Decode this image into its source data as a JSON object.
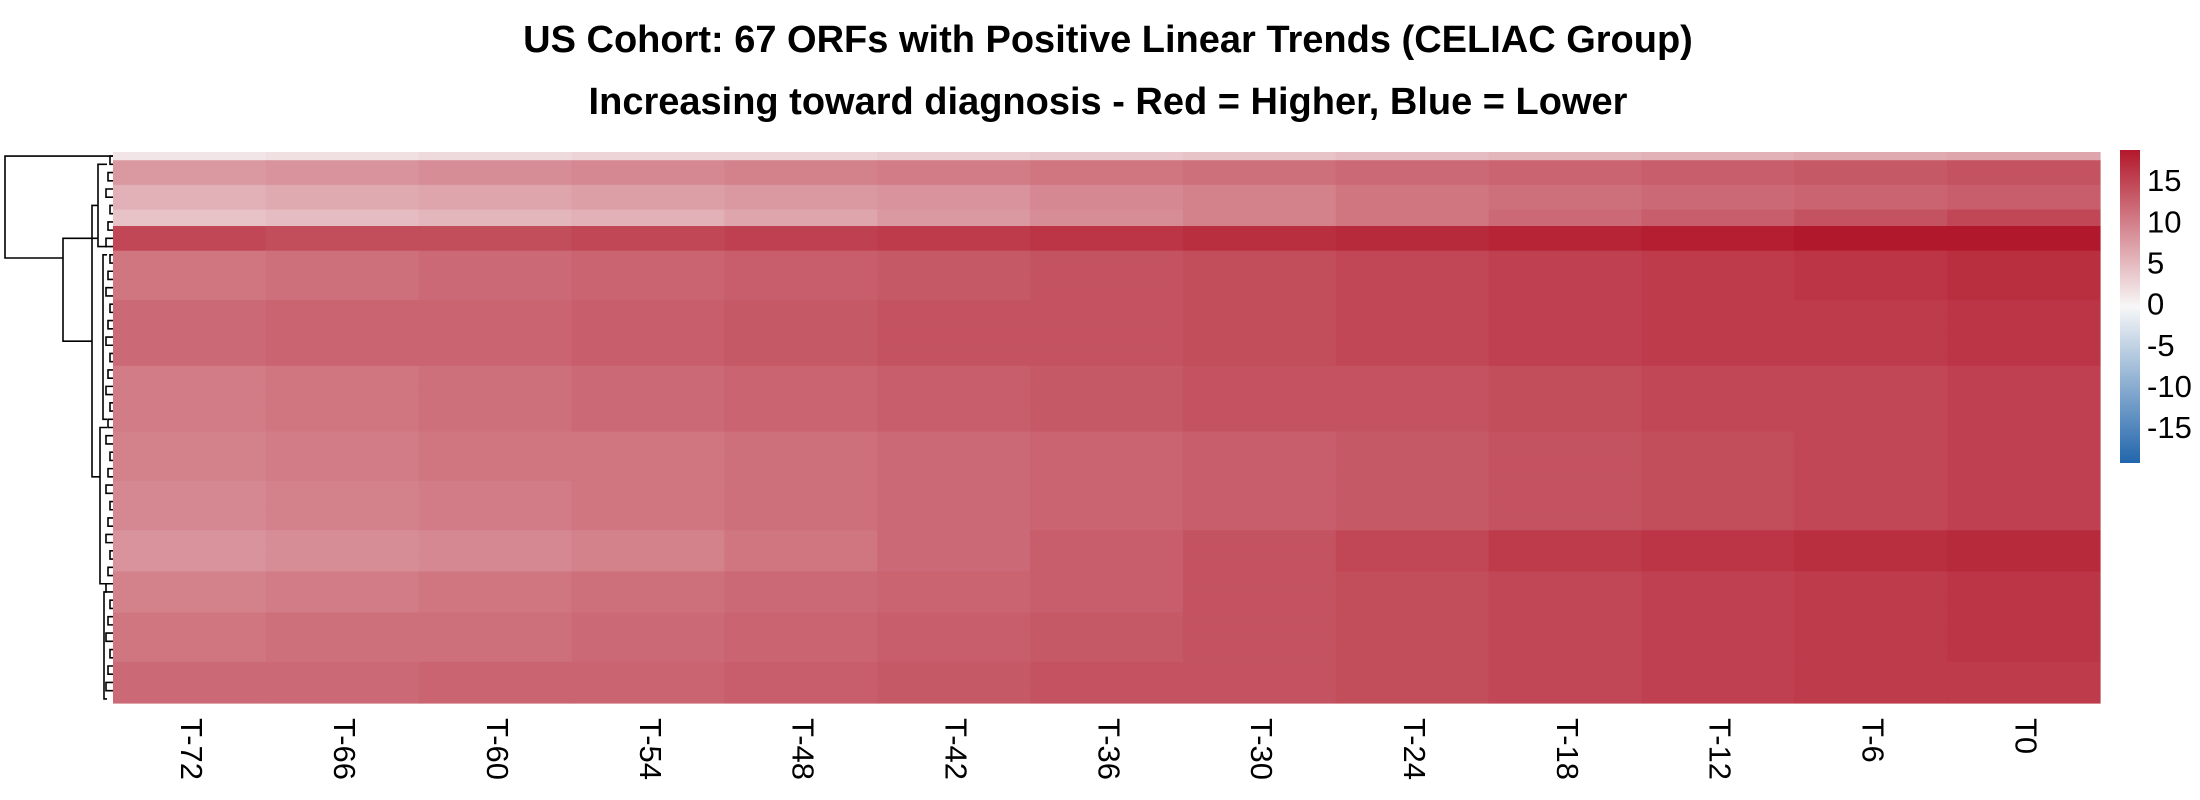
{
  "chart_data": {
    "type": "heatmap",
    "title": "US Cohort: 67 ORFs with Positive Linear Trends (CELIAC Group)",
    "subtitle": "Increasing toward diagnosis - Red = Higher, Blue = Lower",
    "columns": [
      "T-72",
      "T-66",
      "T-60",
      "T-54",
      "T-48",
      "T-42",
      "T-36",
      "T-30",
      "T-24",
      "T-18",
      "T-12",
      "T-6",
      "T0"
    ],
    "row_count": 67,
    "legend": {
      "position": "right",
      "ticks": [
        15,
        10,
        5,
        0,
        -5,
        -10,
        -15
      ],
      "range": [
        -19,
        19
      ],
      "colors": {
        "low": "#2166ac",
        "mid": "#f7f7f7",
        "high": "#b2182b"
      }
    },
    "row_dendrogram": true,
    "values_by_row_group": [
      {
        "rows": 1,
        "values": [
          1.5,
          2,
          2.5,
          3,
          3,
          3.5,
          4,
          4.5,
          5,
          5.5,
          6,
          6.5,
          7
        ]
      },
      {
        "rows": 3,
        "values": [
          8,
          8.5,
          9,
          9.5,
          10,
          10.5,
          11,
          11.5,
          12,
          12.5,
          13,
          13.5,
          14
        ]
      },
      {
        "rows": 3,
        "values": [
          6,
          6.5,
          7,
          7.5,
          8,
          8.5,
          9.5,
          10,
          11,
          11.5,
          12,
          12.5,
          13
        ]
      },
      {
        "rows": 2,
        "values": [
          4.5,
          5,
          5.5,
          6,
          7,
          8,
          9,
          10,
          11,
          12,
          13,
          14,
          15
        ]
      },
      {
        "rows": 3,
        "values": [
          15,
          14.5,
          14.5,
          15,
          15.5,
          16,
          16.5,
          17,
          17.5,
          18,
          18.5,
          19,
          19
        ]
      },
      {
        "rows": 6,
        "values": [
          11,
          11.5,
          12,
          12.5,
          13,
          13.5,
          14,
          14.5,
          15,
          15.5,
          16,
          16.5,
          17
        ]
      },
      {
        "rows": 8,
        "values": [
          12,
          12.5,
          12.5,
          13,
          13.5,
          14,
          14,
          14.5,
          15,
          15.5,
          16,
          16,
          16.5
        ]
      },
      {
        "rows": 8,
        "values": [
          10.5,
          11,
          11.5,
          12,
          12.5,
          13,
          13.5,
          14,
          14,
          14.5,
          15,
          15,
          15.5
        ]
      },
      {
        "rows": 6,
        "values": [
          10,
          10.5,
          11,
          11,
          11.5,
          12,
          12.5,
          13,
          13.5,
          14,
          14.5,
          15,
          15.5
        ]
      },
      {
        "rows": 6,
        "values": [
          9.5,
          10,
          10.5,
          11,
          11.5,
          12,
          12.5,
          13,
          13.5,
          14,
          14.5,
          15,
          15.5
        ]
      },
      {
        "rows": 5,
        "values": [
          8.5,
          9,
          9.5,
          10,
          11,
          12,
          13,
          14,
          15,
          16,
          16.5,
          17,
          17.5
        ]
      },
      {
        "rows": 5,
        "values": [
          10,
          10.5,
          11,
          11.5,
          12,
          12.5,
          13,
          14,
          14.5,
          15,
          15.5,
          16,
          16.5
        ]
      },
      {
        "rows": 6,
        "values": [
          11,
          11.5,
          11.5,
          12,
          12.5,
          13,
          13.5,
          14,
          14.5,
          15,
          15.5,
          16,
          16.5
        ]
      },
      {
        "rows": 5,
        "values": [
          12,
          12,
          12.5,
          12.5,
          13,
          13.5,
          14,
          14,
          14.5,
          15,
          15.5,
          16,
          16
        ]
      }
    ]
  }
}
